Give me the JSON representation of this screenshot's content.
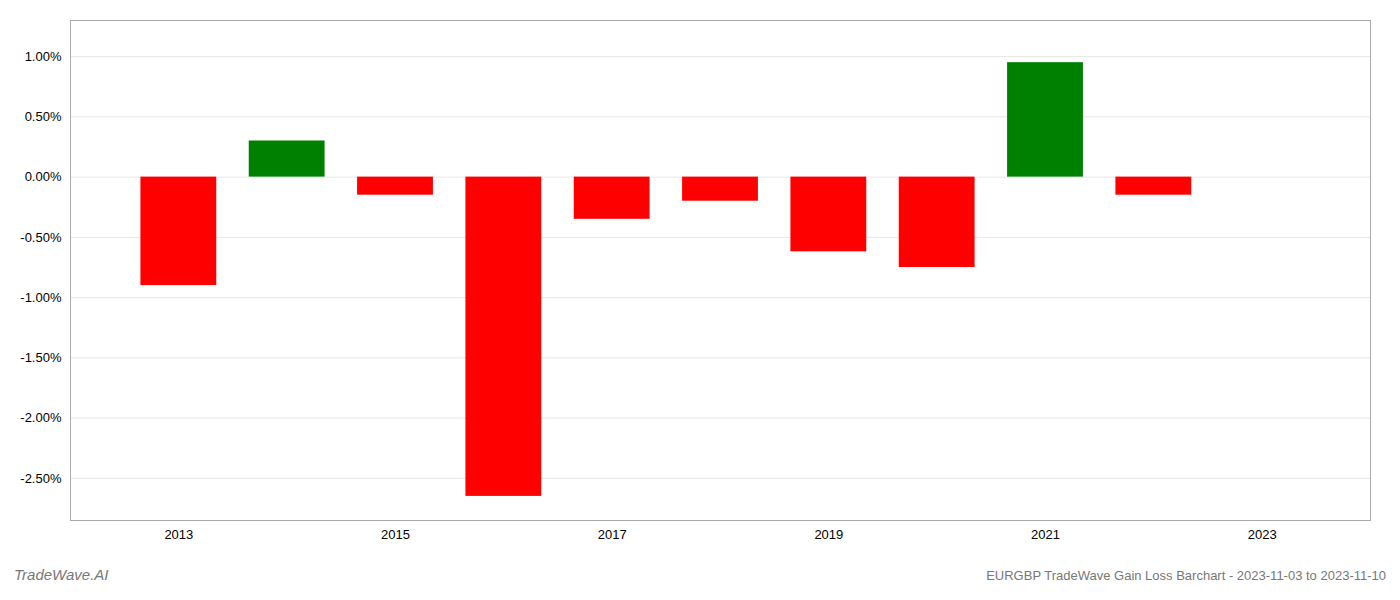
{
  "chart_data": {
    "type": "bar",
    "title": "EURGBP TradeWave Gain Loss Barchart - 2023-11-03 to 2023-11-10",
    "annotations": [
      "TradeWave.AI"
    ],
    "x": [
      2013,
      2014,
      2015,
      2016,
      2017,
      2018,
      2019,
      2020,
      2021,
      2022
    ],
    "values": [
      -0.009,
      0.003,
      -0.0015,
      -0.0265,
      -0.0035,
      -0.002,
      -0.0062,
      -0.0075,
      0.0095,
      -0.0015
    ],
    "colors": [
      "#ff0000",
      "#008000",
      "#ff0000",
      "#ff0000",
      "#ff0000",
      "#ff0000",
      "#ff0000",
      "#ff0000",
      "#008000",
      "#ff0000"
    ],
    "xlim": [
      2012,
      2024
    ],
    "xticks": [
      2013,
      2015,
      2017,
      2019,
      2021,
      2023
    ],
    "ylim": [
      -0.0285,
      0.013
    ],
    "yticks": [
      {
        "value": -0.025,
        "label": "-2.50%"
      },
      {
        "value": -0.02,
        "label": "-2.00%"
      },
      {
        "value": -0.015,
        "label": "-1.50%"
      },
      {
        "value": -0.01,
        "label": "-1.00%"
      },
      {
        "value": -0.005,
        "label": "-0.50%"
      },
      {
        "value": 0,
        "label": "0.00%"
      },
      {
        "value": 0.005,
        "label": "0.50%"
      },
      {
        "value": 0.01,
        "label": "1.00%"
      }
    ],
    "grid": true
  }
}
